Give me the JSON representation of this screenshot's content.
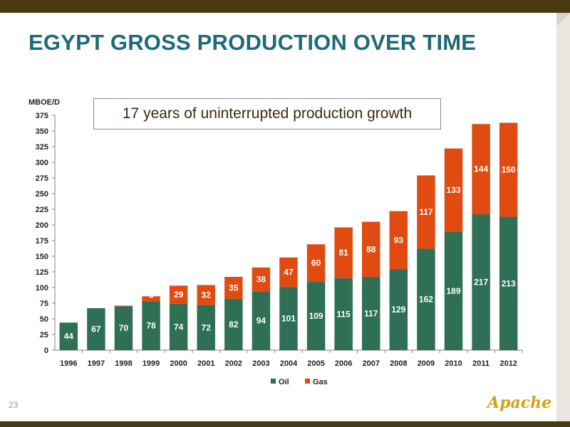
{
  "slide": {
    "title": "EGYPT GROSS PRODUCTION OVER TIME",
    "callout": "17 years of uninterrupted production growth",
    "page_number": "23",
    "logo_text": "Apache"
  },
  "colors": {
    "oil": "#2f6f55",
    "gas": "#e04b12",
    "title": "#1d6a78",
    "frame": "#4a3a12"
  },
  "chart_data": {
    "type": "bar",
    "stacked": true,
    "ylabel": "MBOE/D",
    "ylim": [
      0,
      375
    ],
    "yticks": [
      0,
      25,
      50,
      75,
      100,
      125,
      150,
      175,
      200,
      225,
      250,
      275,
      300,
      325,
      350,
      375
    ],
    "categories": [
      "1996",
      "1997",
      "1998",
      "1999",
      "2000",
      "2001",
      "2002",
      "2003",
      "2004",
      "2005",
      "2006",
      "2007",
      "2008",
      "2009",
      "2010",
      "2011",
      "2012"
    ],
    "series": [
      {
        "name": "Oil",
        "values": [
          44,
          67,
          70,
          78,
          74,
          72,
          82,
          94,
          101,
          109,
          115,
          117,
          129,
          162,
          189,
          217,
          213
        ]
      },
      {
        "name": "Gas",
        "values": [
          0,
          0,
          1,
          8,
          29,
          32,
          35,
          38,
          47,
          60,
          81,
          88,
          93,
          117,
          133,
          144,
          150
        ]
      }
    ],
    "legend_position": "bottom",
    "grid": false
  }
}
